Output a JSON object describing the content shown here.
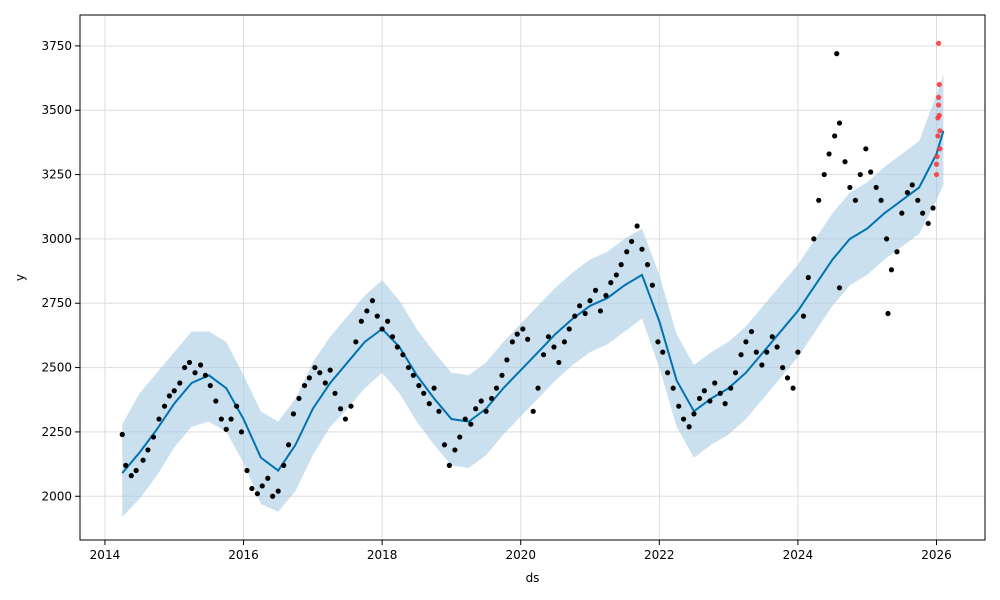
{
  "chart_data": {
    "type": "scatter",
    "xlabel": "ds",
    "ylabel": "y",
    "xlim": [
      2013.64,
      2026.7
    ],
    "ylim": [
      1830,
      3870
    ],
    "grid": true,
    "x_ticks": [
      2014,
      2016,
      2018,
      2020,
      2022,
      2024,
      2026
    ],
    "x_tick_labels": [
      "2014",
      "2016",
      "2018",
      "2020",
      "2022",
      "2024",
      "2026"
    ],
    "y_ticks": [
      2000,
      2250,
      2500,
      2750,
      3000,
      3250,
      3500,
      3750
    ],
    "y_tick_labels": [
      "2000",
      "2250",
      "2500",
      "2750",
      "3000",
      "3250",
      "3500",
      "3750"
    ],
    "colors": {
      "observed": "#000000",
      "future_actual": "#ff3333",
      "forecast_line": "#0072b2",
      "uncertainty_band": "#a6cbe3",
      "grid": "#dddddd"
    },
    "series": [
      {
        "kind": "forecast",
        "points": [
          [
            2014.25,
            2090
          ],
          [
            2014.5,
            2170
          ],
          [
            2014.75,
            2260
          ],
          [
            2015.0,
            2360
          ],
          [
            2015.25,
            2440
          ],
          [
            2015.5,
            2470
          ],
          [
            2015.75,
            2420
          ],
          [
            2016.0,
            2300
          ],
          [
            2016.25,
            2150
          ],
          [
            2016.5,
            2100
          ],
          [
            2016.75,
            2200
          ],
          [
            2017.0,
            2340
          ],
          [
            2017.25,
            2440
          ],
          [
            2017.5,
            2520
          ],
          [
            2017.75,
            2600
          ],
          [
            2018.0,
            2650
          ],
          [
            2018.25,
            2580
          ],
          [
            2018.5,
            2470
          ],
          [
            2018.75,
            2380
          ],
          [
            2019.0,
            2300
          ],
          [
            2019.25,
            2290
          ],
          [
            2019.5,
            2340
          ],
          [
            2019.75,
            2420
          ],
          [
            2020.0,
            2490
          ],
          [
            2020.25,
            2560
          ],
          [
            2020.5,
            2630
          ],
          [
            2020.75,
            2690
          ],
          [
            2021.0,
            2740
          ],
          [
            2021.25,
            2770
          ],
          [
            2021.5,
            2820
          ],
          [
            2021.75,
            2860
          ],
          [
            2022.0,
            2680
          ],
          [
            2022.25,
            2450
          ],
          [
            2022.5,
            2330
          ],
          [
            2022.75,
            2380
          ],
          [
            2023.0,
            2420
          ],
          [
            2023.25,
            2480
          ],
          [
            2023.5,
            2560
          ],
          [
            2023.75,
            2640
          ],
          [
            2024.0,
            2720
          ],
          [
            2024.25,
            2820
          ],
          [
            2024.5,
            2920
          ],
          [
            2024.75,
            3000
          ],
          [
            2025.0,
            3040
          ],
          [
            2025.25,
            3100
          ],
          [
            2025.5,
            3150
          ],
          [
            2025.75,
            3200
          ],
          [
            2026.0,
            3330
          ],
          [
            2026.1,
            3420
          ]
        ],
        "band": [
          [
            2014.25,
            1920,
            2280
          ],
          [
            2014.5,
            1990,
            2400
          ],
          [
            2014.75,
            2080,
            2480
          ],
          [
            2015.0,
            2190,
            2560
          ],
          [
            2015.25,
            2270,
            2640
          ],
          [
            2015.5,
            2290,
            2640
          ],
          [
            2015.75,
            2250,
            2600
          ],
          [
            2016.0,
            2130,
            2470
          ],
          [
            2016.25,
            1970,
            2330
          ],
          [
            2016.5,
            1940,
            2290
          ],
          [
            2016.75,
            2020,
            2380
          ],
          [
            2017.0,
            2160,
            2520
          ],
          [
            2017.25,
            2270,
            2620
          ],
          [
            2017.5,
            2340,
            2700
          ],
          [
            2017.75,
            2420,
            2780
          ],
          [
            2018.0,
            2480,
            2840
          ],
          [
            2018.25,
            2400,
            2760
          ],
          [
            2018.5,
            2290,
            2650
          ],
          [
            2018.75,
            2200,
            2560
          ],
          [
            2019.0,
            2120,
            2480
          ],
          [
            2019.25,
            2110,
            2470
          ],
          [
            2019.5,
            2160,
            2520
          ],
          [
            2019.75,
            2240,
            2600
          ],
          [
            2020.0,
            2310,
            2670
          ],
          [
            2020.25,
            2380,
            2740
          ],
          [
            2020.5,
            2450,
            2810
          ],
          [
            2020.75,
            2510,
            2870
          ],
          [
            2021.0,
            2560,
            2920
          ],
          [
            2021.25,
            2590,
            2950
          ],
          [
            2021.5,
            2640,
            3000
          ],
          [
            2021.75,
            2690,
            3040
          ],
          [
            2022.0,
            2500,
            2860
          ],
          [
            2022.25,
            2270,
            2630
          ],
          [
            2022.5,
            2150,
            2510
          ],
          [
            2022.75,
            2200,
            2560
          ],
          [
            2023.0,
            2240,
            2600
          ],
          [
            2023.25,
            2300,
            2660
          ],
          [
            2023.5,
            2380,
            2740
          ],
          [
            2023.75,
            2460,
            2820
          ],
          [
            2024.0,
            2540,
            2900
          ],
          [
            2024.25,
            2640,
            3000
          ],
          [
            2024.5,
            2740,
            3100
          ],
          [
            2024.75,
            2820,
            3180
          ],
          [
            2025.0,
            2860,
            3220
          ],
          [
            2025.25,
            2920,
            3280
          ],
          [
            2025.5,
            2970,
            3330
          ],
          [
            2025.75,
            3020,
            3380
          ],
          [
            2026.0,
            3150,
            3560
          ],
          [
            2026.1,
            3210,
            3640
          ]
        ]
      },
      {
        "kind": "observed",
        "points": [
          [
            2014.25,
            2240
          ],
          [
            2014.3,
            2120
          ],
          [
            2014.38,
            2080
          ],
          [
            2014.45,
            2100
          ],
          [
            2014.55,
            2140
          ],
          [
            2014.62,
            2180
          ],
          [
            2014.7,
            2230
          ],
          [
            2014.78,
            2300
          ],
          [
            2014.86,
            2350
          ],
          [
            2014.93,
            2390
          ],
          [
            2015.0,
            2410
          ],
          [
            2015.08,
            2440
          ],
          [
            2015.15,
            2500
          ],
          [
            2015.22,
            2520
          ],
          [
            2015.3,
            2480
          ],
          [
            2015.38,
            2510
          ],
          [
            2015.45,
            2470
          ],
          [
            2015.52,
            2430
          ],
          [
            2015.6,
            2370
          ],
          [
            2015.68,
            2300
          ],
          [
            2015.75,
            2260
          ],
          [
            2015.82,
            2300
          ],
          [
            2015.9,
            2350
          ],
          [
            2015.97,
            2250
          ],
          [
            2016.05,
            2100
          ],
          [
            2016.12,
            2030
          ],
          [
            2016.2,
            2010
          ],
          [
            2016.27,
            2040
          ],
          [
            2016.35,
            2070
          ],
          [
            2016.42,
            2000
          ],
          [
            2016.5,
            2020
          ],
          [
            2016.58,
            2120
          ],
          [
            2016.65,
            2200
          ],
          [
            2016.72,
            2320
          ],
          [
            2016.8,
            2380
          ],
          [
            2016.88,
            2430
          ],
          [
            2016.95,
            2460
          ],
          [
            2017.03,
            2500
          ],
          [
            2017.1,
            2480
          ],
          [
            2017.18,
            2440
          ],
          [
            2017.25,
            2490
          ],
          [
            2017.32,
            2400
          ],
          [
            2017.4,
            2340
          ],
          [
            2017.47,
            2300
          ],
          [
            2017.55,
            2350
          ],
          [
            2017.62,
            2600
          ],
          [
            2017.7,
            2680
          ],
          [
            2017.78,
            2720
          ],
          [
            2017.86,
            2760
          ],
          [
            2017.93,
            2700
          ],
          [
            2018.0,
            2650
          ],
          [
            2018.08,
            2680
          ],
          [
            2018.15,
            2620
          ],
          [
            2018.22,
            2580
          ],
          [
            2018.3,
            2550
          ],
          [
            2018.38,
            2500
          ],
          [
            2018.45,
            2470
          ],
          [
            2018.53,
            2430
          ],
          [
            2018.6,
            2400
          ],
          [
            2018.68,
            2360
          ],
          [
            2018.75,
            2420
          ],
          [
            2018.82,
            2330
          ],
          [
            2018.9,
            2200
          ],
          [
            2018.97,
            2120
          ],
          [
            2019.05,
            2180
          ],
          [
            2019.12,
            2230
          ],
          [
            2019.2,
            2300
          ],
          [
            2019.28,
            2280
          ],
          [
            2019.35,
            2340
          ],
          [
            2019.43,
            2370
          ],
          [
            2019.5,
            2330
          ],
          [
            2019.58,
            2380
          ],
          [
            2019.65,
            2420
          ],
          [
            2019.73,
            2470
          ],
          [
            2019.8,
            2530
          ],
          [
            2019.88,
            2600
          ],
          [
            2019.95,
            2630
          ],
          [
            2020.03,
            2650
          ],
          [
            2020.1,
            2610
          ],
          [
            2020.18,
            2330
          ],
          [
            2020.25,
            2420
          ],
          [
            2020.33,
            2550
          ],
          [
            2020.4,
            2620
          ],
          [
            2020.48,
            2580
          ],
          [
            2020.55,
            2520
          ],
          [
            2020.63,
            2600
          ],
          [
            2020.7,
            2650
          ],
          [
            2020.78,
            2700
          ],
          [
            2020.85,
            2740
          ],
          [
            2020.93,
            2710
          ],
          [
            2021.0,
            2760
          ],
          [
            2021.08,
            2800
          ],
          [
            2021.15,
            2720
          ],
          [
            2021.23,
            2780
          ],
          [
            2021.3,
            2830
          ],
          [
            2021.38,
            2860
          ],
          [
            2021.45,
            2900
          ],
          [
            2021.53,
            2950
          ],
          [
            2021.6,
            2990
          ],
          [
            2021.68,
            3050
          ],
          [
            2021.75,
            2960
          ],
          [
            2021.83,
            2900
          ],
          [
            2021.9,
            2820
          ],
          [
            2021.98,
            2600
          ],
          [
            2022.05,
            2560
          ],
          [
            2022.12,
            2480
          ],
          [
            2022.2,
            2420
          ],
          [
            2022.28,
            2350
          ],
          [
            2022.35,
            2300
          ],
          [
            2022.43,
            2270
          ],
          [
            2022.5,
            2320
          ],
          [
            2022.58,
            2380
          ],
          [
            2022.65,
            2410
          ],
          [
            2022.73,
            2370
          ],
          [
            2022.8,
            2440
          ],
          [
            2022.88,
            2400
          ],
          [
            2022.95,
            2360
          ],
          [
            2023.03,
            2420
          ],
          [
            2023.1,
            2480
          ],
          [
            2023.18,
            2550
          ],
          [
            2023.25,
            2600
          ],
          [
            2023.33,
            2640
          ],
          [
            2023.4,
            2560
          ],
          [
            2023.48,
            2510
          ],
          [
            2023.55,
            2560
          ],
          [
            2023.63,
            2620
          ],
          [
            2023.7,
            2580
          ],
          [
            2023.78,
            2500
          ],
          [
            2023.85,
            2460
          ],
          [
            2023.93,
            2420
          ],
          [
            2024.0,
            2560
          ],
          [
            2024.08,
            2700
          ],
          [
            2024.15,
            2850
          ],
          [
            2024.23,
            3000
          ],
          [
            2024.3,
            3150
          ],
          [
            2024.38,
            3250
          ],
          [
            2024.45,
            3330
          ],
          [
            2024.53,
            3400
          ],
          [
            2024.6,
            3450
          ],
          [
            2024.68,
            3300
          ],
          [
            2024.75,
            3200
          ],
          [
            2024.83,
            3150
          ],
          [
            2024.9,
            3250
          ],
          [
            2024.98,
            3350
          ],
          [
            2025.05,
            3260
          ],
          [
            2025.13,
            3200
          ],
          [
            2025.2,
            3150
          ],
          [
            2025.28,
            3000
          ],
          [
            2025.35,
            2880
          ],
          [
            2025.43,
            2950
          ],
          [
            2025.5,
            3100
          ],
          [
            2025.58,
            3180
          ],
          [
            2025.65,
            3210
          ],
          [
            2025.73,
            3150
          ],
          [
            2025.8,
            3100
          ],
          [
            2025.88,
            3060
          ],
          [
            2025.95,
            3120
          ],
          [
            2024.56,
            3720
          ],
          [
            2025.3,
            2710
          ],
          [
            2024.6,
            2810
          ]
        ]
      },
      {
        "kind": "future_actual",
        "points": [
          [
            2026.0,
            3250
          ],
          [
            2026.01,
            3320
          ],
          [
            2026.02,
            3400
          ],
          [
            2026.02,
            3470
          ],
          [
            2026.03,
            3520
          ],
          [
            2026.03,
            3550
          ],
          [
            2026.04,
            3480
          ],
          [
            2026.05,
            3420
          ],
          [
            2026.05,
            3350
          ],
          [
            2026.04,
            3600
          ],
          [
            2026.03,
            3760
          ],
          [
            2026.0,
            3290
          ]
        ]
      }
    ]
  }
}
